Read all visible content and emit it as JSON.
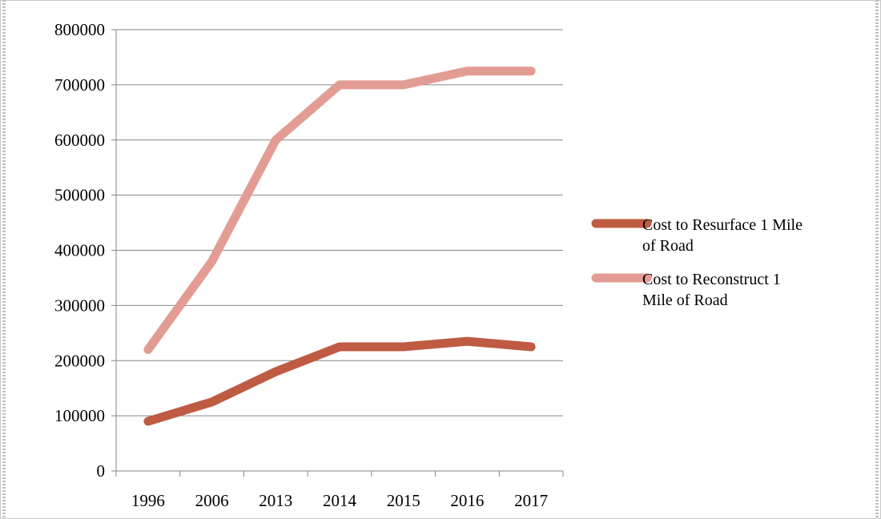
{
  "chart_data": {
    "type": "line",
    "categories": [
      "1996",
      "2006",
      "2013",
      "2014",
      "2015",
      "2016",
      "2017"
    ],
    "series": [
      {
        "name": "Cost to Resurface 1 Mile of Road",
        "name_lines": [
          "Cost to Resurface 1 Mile",
          "of Road"
        ],
        "color": "#bf5b43",
        "values": [
          90000,
          125000,
          180000,
          225000,
          225000,
          235000,
          225000
        ]
      },
      {
        "name": "Cost to Reconstruct 1 Mile of Road",
        "name_lines": [
          "Cost to Reconstruct 1",
          "Mile of Road"
        ],
        "color": "#e39c93",
        "values": [
          220000,
          380000,
          600000,
          700000,
          700000,
          725000,
          725000
        ]
      }
    ],
    "y_ticks": [
      "0",
      "100000",
      "200000",
      "300000",
      "400000",
      "500000",
      "600000",
      "700000",
      "800000"
    ],
    "ylim": [
      0,
      800000
    ],
    "grid": true,
    "legend_position": "right"
  }
}
